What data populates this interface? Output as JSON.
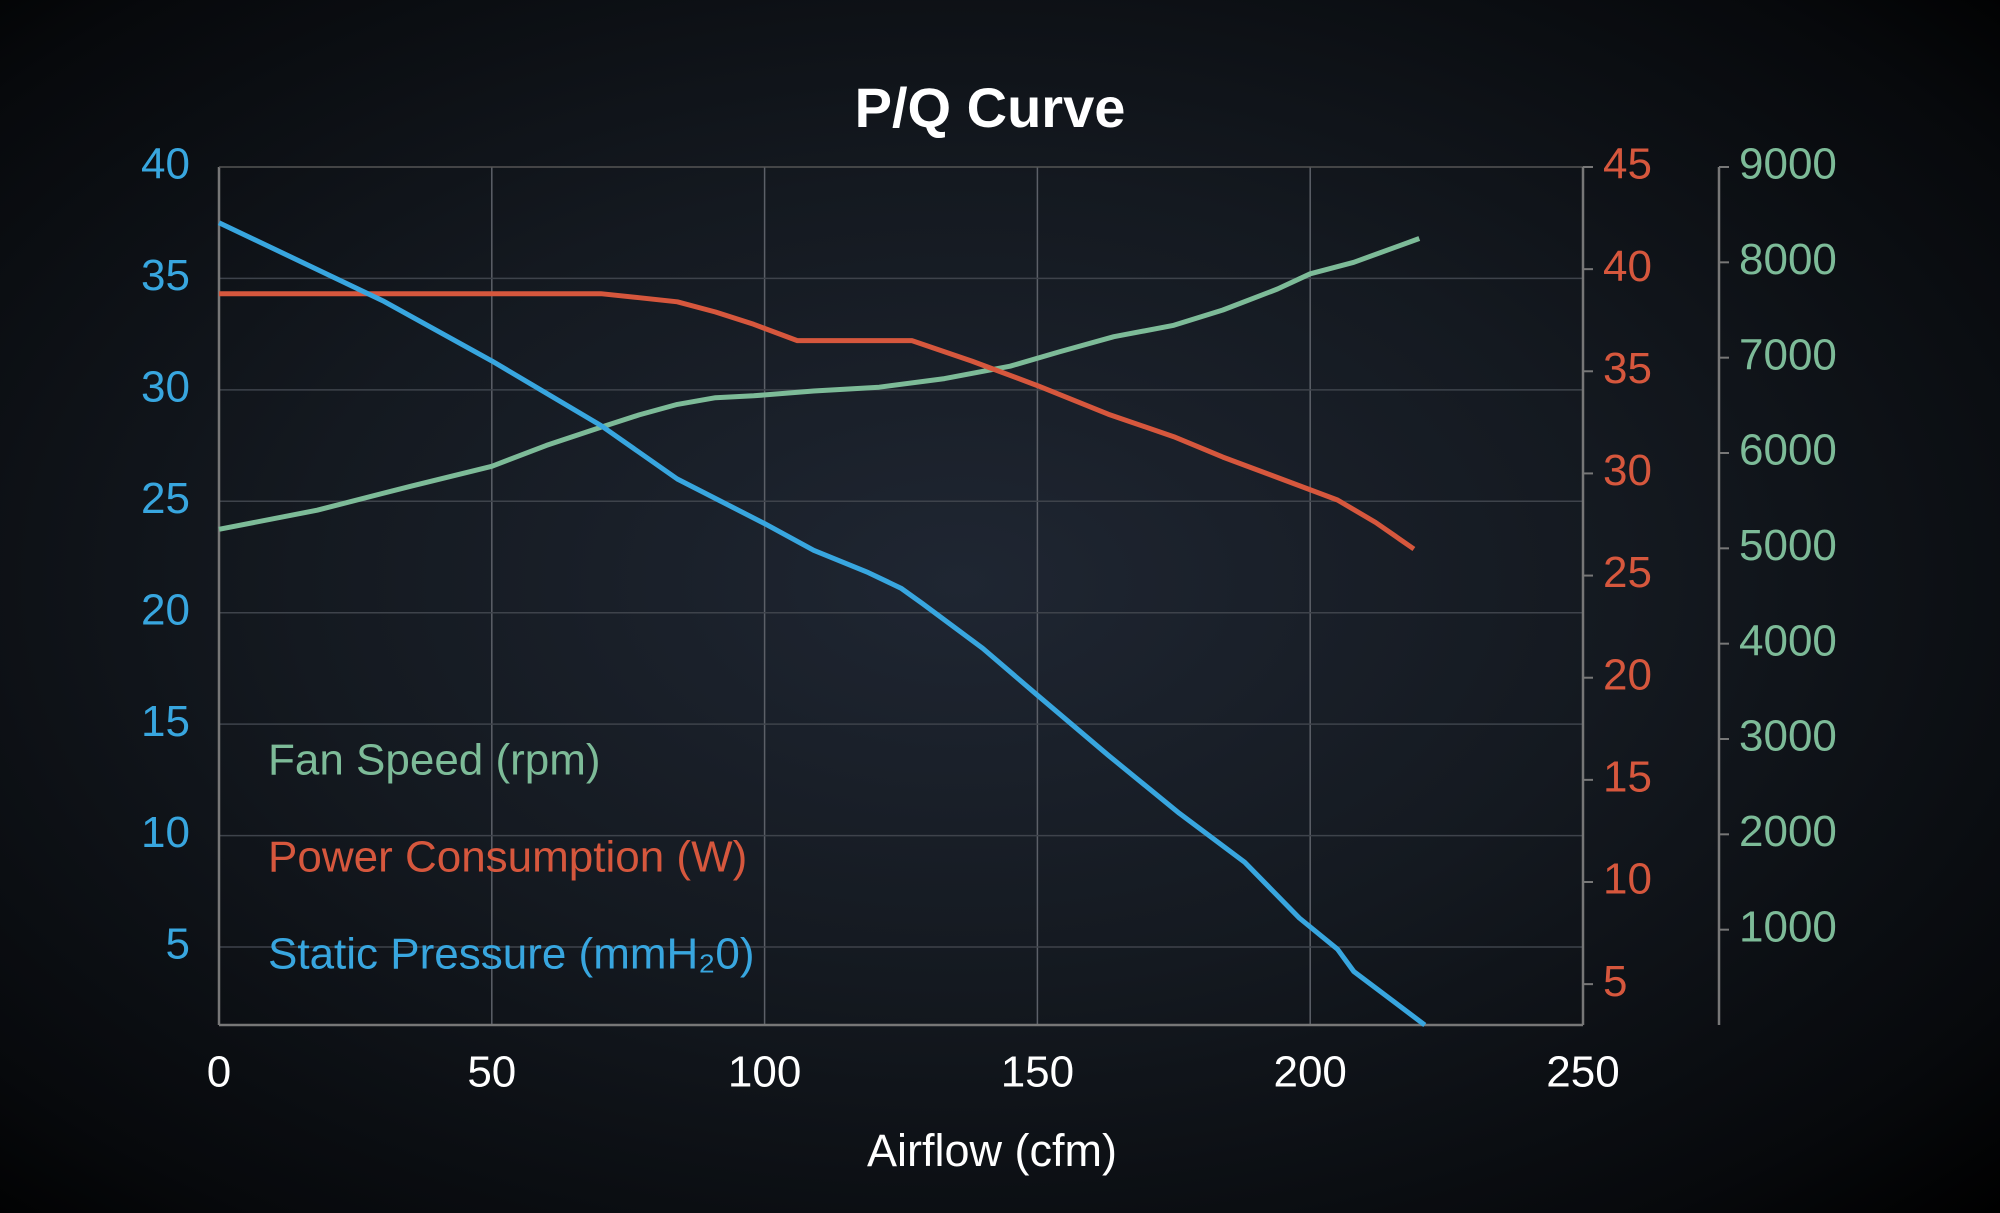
{
  "chart_data": {
    "type": "line",
    "title": "P/Q Curve",
    "x_label": "Airflow (cfm)",
    "xlim": [
      0,
      250
    ],
    "xticks": [
      0,
      50,
      100,
      150,
      200,
      250
    ],
    "ylim": [
      1.5,
      40
    ],
    "yticks": [
      5,
      10,
      15,
      20,
      25,
      30,
      35,
      40
    ],
    "y2lim": [
      3,
      45
    ],
    "y2ticks": [
      5,
      10,
      15,
      20,
      25,
      30,
      35,
      40,
      45
    ],
    "y3lim": [
      0,
      9000
    ],
    "y3ticks": [
      1000,
      2000,
      3000,
      4000,
      5000,
      6000,
      7000,
      8000,
      9000
    ],
    "grid": true,
    "series": [
      {
        "name": "Fan Speed (rpm)",
        "color": "#7dbb98",
        "axis": "y3",
        "x": [
          0,
          18,
          35,
          50,
          60,
          70,
          77,
          84,
          91,
          98,
          109,
          121,
          133,
          145,
          154,
          164,
          175,
          184,
          194,
          200,
          208,
          220
        ],
        "values": [
          5200,
          5400,
          5650,
          5860,
          6080,
          6270,
          6400,
          6510,
          6580,
          6600,
          6650,
          6690,
          6780,
          6910,
          7060,
          7220,
          7340,
          7500,
          7720,
          7880,
          8000,
          8250
        ]
      },
      {
        "name": "Power Consumption (W)",
        "color": "#d6573d",
        "axis": "y2",
        "x": [
          0,
          70,
          77,
          84,
          91,
          98,
          106,
          127,
          138,
          150,
          163,
          175,
          184,
          194,
          205,
          212,
          219
        ],
        "values": [
          38.8,
          38.8,
          38.6,
          38.4,
          37.9,
          37.3,
          36.5,
          36.5,
          35.5,
          34.3,
          32.9,
          31.8,
          30.8,
          29.8,
          28.7,
          27.6,
          26.3
        ]
      },
      {
        "name": "Static Pressure (mmH₂0)",
        "color": "#38a6df",
        "axis": "y",
        "x": [
          0,
          30,
          50,
          70,
          84,
          100,
          109,
          119,
          125,
          129,
          140,
          150,
          163,
          176,
          188,
          198,
          205,
          208,
          221
        ],
        "values": [
          37.5,
          34.0,
          31.3,
          28.4,
          26.0,
          24.0,
          22.8,
          21.8,
          21.1,
          20.4,
          18.4,
          16.3,
          13.6,
          11.0,
          8.8,
          6.3,
          4.9,
          3.9,
          1.5
        ]
      }
    ]
  }
}
